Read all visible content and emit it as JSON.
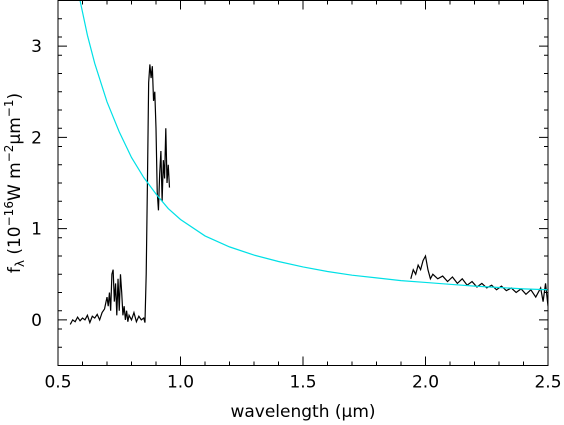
{
  "chart_data": {
    "type": "line",
    "title": "",
    "xlabel": "wavelength (μm)",
    "ylabel": {
      "prefix": "f",
      "sub": "λ",
      "open": "(10",
      "exp1": "−16",
      "mid": "W m",
      "exp2": "−2",
      "mu": "μm",
      "exp3": "−1",
      "close": ")"
    },
    "xlim": [
      0.5,
      2.5
    ],
    "ylim": [
      -0.5,
      3.5
    ],
    "xticks": [
      0.5,
      1.0,
      1.5,
      2.0,
      2.5
    ],
    "xtick_labels": [
      "0.5",
      "1.0",
      "1.5",
      "2.0",
      "2.5"
    ],
    "yticks": [
      0,
      1,
      2,
      3
    ],
    "ytick_labels": [
      "0",
      "1",
      "2",
      "3"
    ],
    "grid": false,
    "legend": "none",
    "series": [
      {
        "style": "spectrum-optical",
        "color": "#000000",
        "x": [
          0.55,
          0.56,
          0.57,
          0.58,
          0.59,
          0.6,
          0.61,
          0.62,
          0.63,
          0.64,
          0.65,
          0.66,
          0.67,
          0.68,
          0.69,
          0.7,
          0.705,
          0.71,
          0.715,
          0.72,
          0.725,
          0.73,
          0.735,
          0.74,
          0.745,
          0.75,
          0.755,
          0.76,
          0.765,
          0.77,
          0.775,
          0.78,
          0.785,
          0.79,
          0.8,
          0.81,
          0.82,
          0.83,
          0.84,
          0.85,
          0.855,
          0.86,
          0.865,
          0.87,
          0.875,
          0.88,
          0.885,
          0.89,
          0.895,
          0.9,
          0.905,
          0.91,
          0.915,
          0.92,
          0.925,
          0.93,
          0.935,
          0.94,
          0.945,
          0.95,
          0.955
        ],
        "y": [
          -0.05,
          0.0,
          -0.02,
          0.03,
          -0.01,
          0.02,
          0.0,
          0.05,
          -0.03,
          0.04,
          0.02,
          0.06,
          0.0,
          0.08,
          0.12,
          0.25,
          0.15,
          0.3,
          0.1,
          0.5,
          0.55,
          0.2,
          0.4,
          0.05,
          0.45,
          0.1,
          0.5,
          0.3,
          0.05,
          0.15,
          0.0,
          0.1,
          -0.02,
          0.05,
          0.0,
          0.08,
          -0.02,
          0.04,
          0.0,
          0.02,
          -0.03,
          0.5,
          1.5,
          2.6,
          2.8,
          2.65,
          2.78,
          2.4,
          2.5,
          2.1,
          1.4,
          1.2,
          1.6,
          1.85,
          1.3,
          1.75,
          1.55,
          2.1,
          1.5,
          1.7,
          1.45
        ]
      },
      {
        "style": "spectrum-nir",
        "color": "#000000",
        "x": [
          1.94,
          1.95,
          1.96,
          1.97,
          1.98,
          1.99,
          2.0,
          2.01,
          2.02,
          2.03,
          2.05,
          2.07,
          2.09,
          2.11,
          2.13,
          2.15,
          2.17,
          2.19,
          2.21,
          2.23,
          2.25,
          2.27,
          2.29,
          2.31,
          2.33,
          2.35,
          2.37,
          2.39,
          2.41,
          2.43,
          2.45,
          2.47,
          2.48,
          2.49,
          2.5
        ],
        "y": [
          0.45,
          0.55,
          0.5,
          0.6,
          0.55,
          0.65,
          0.7,
          0.55,
          0.45,
          0.5,
          0.45,
          0.48,
          0.42,
          0.47,
          0.4,
          0.45,
          0.38,
          0.42,
          0.36,
          0.4,
          0.35,
          0.38,
          0.33,
          0.37,
          0.32,
          0.35,
          0.3,
          0.34,
          0.28,
          0.33,
          0.25,
          0.35,
          0.2,
          0.4,
          0.15
        ]
      },
      {
        "style": "model-curve",
        "color": "#00e0e6",
        "x": [
          0.59,
          0.62,
          0.65,
          0.7,
          0.75,
          0.8,
          0.85,
          0.9,
          0.95,
          1.0,
          1.1,
          1.2,
          1.3,
          1.4,
          1.5,
          1.6,
          1.7,
          1.8,
          1.9,
          2.0,
          2.1,
          2.2,
          2.3,
          2.4,
          2.5
        ],
        "y": [
          3.5,
          3.12,
          2.81,
          2.39,
          2.06,
          1.78,
          1.56,
          1.38,
          1.22,
          1.1,
          0.92,
          0.8,
          0.71,
          0.64,
          0.58,
          0.53,
          0.49,
          0.46,
          0.43,
          0.41,
          0.39,
          0.37,
          0.355,
          0.34,
          0.33
        ]
      }
    ]
  }
}
